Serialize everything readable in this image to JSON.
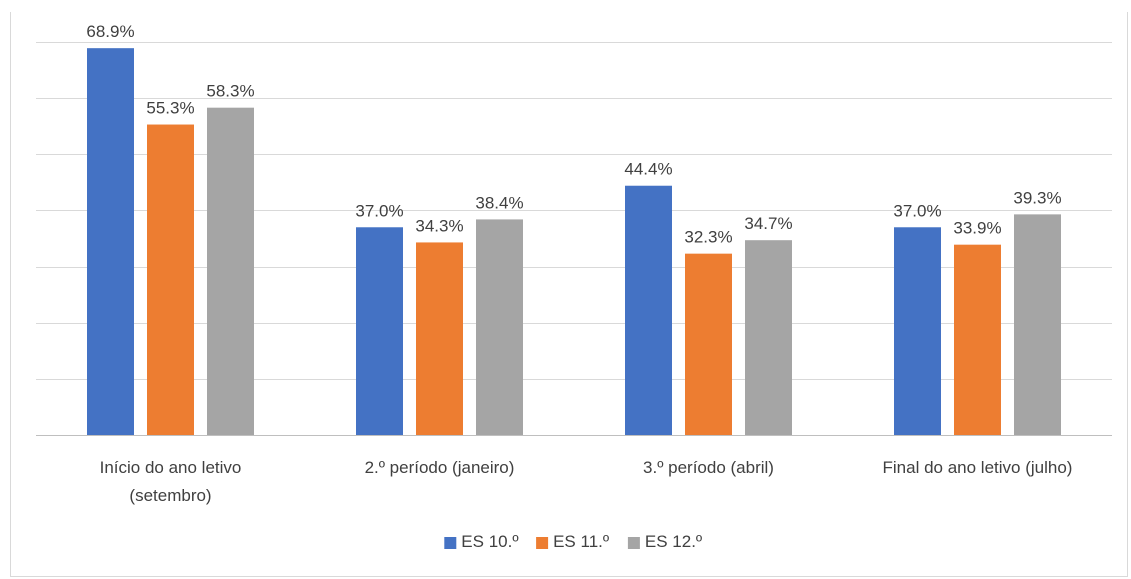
{
  "chart_data": {
    "type": "bar",
    "title": "",
    "xlabel": "",
    "ylabel": "",
    "ylim": [
      0,
      70
    ],
    "grid": true,
    "legend_position": "bottom",
    "categories": [
      [
        "Início do ano letivo",
        "(setembro)"
      ],
      [
        "2.º período (janeiro)"
      ],
      [
        "3.º período (abril)"
      ],
      [
        "Final do ano letivo (julho)"
      ]
    ],
    "series": [
      {
        "name": "ES 10.º",
        "color": "#4472c4",
        "values": [
          68.9,
          37.0,
          44.4,
          37.0
        ],
        "labels": [
          "68.9%",
          "37.0%",
          "44.4%",
          "37.0%"
        ]
      },
      {
        "name": "ES 11.º",
        "color": "#ed7d31",
        "values": [
          55.3,
          34.3,
          32.3,
          33.9
        ],
        "labels": [
          "55.3%",
          "34.3%",
          "32.3%",
          "33.9%"
        ]
      },
      {
        "name": "ES 12.º",
        "color": "#a5a5a5",
        "values": [
          58.3,
          38.4,
          34.7,
          39.3
        ],
        "labels": [
          "58.3%",
          "38.4%",
          "34.7%",
          "39.3%"
        ]
      }
    ]
  }
}
